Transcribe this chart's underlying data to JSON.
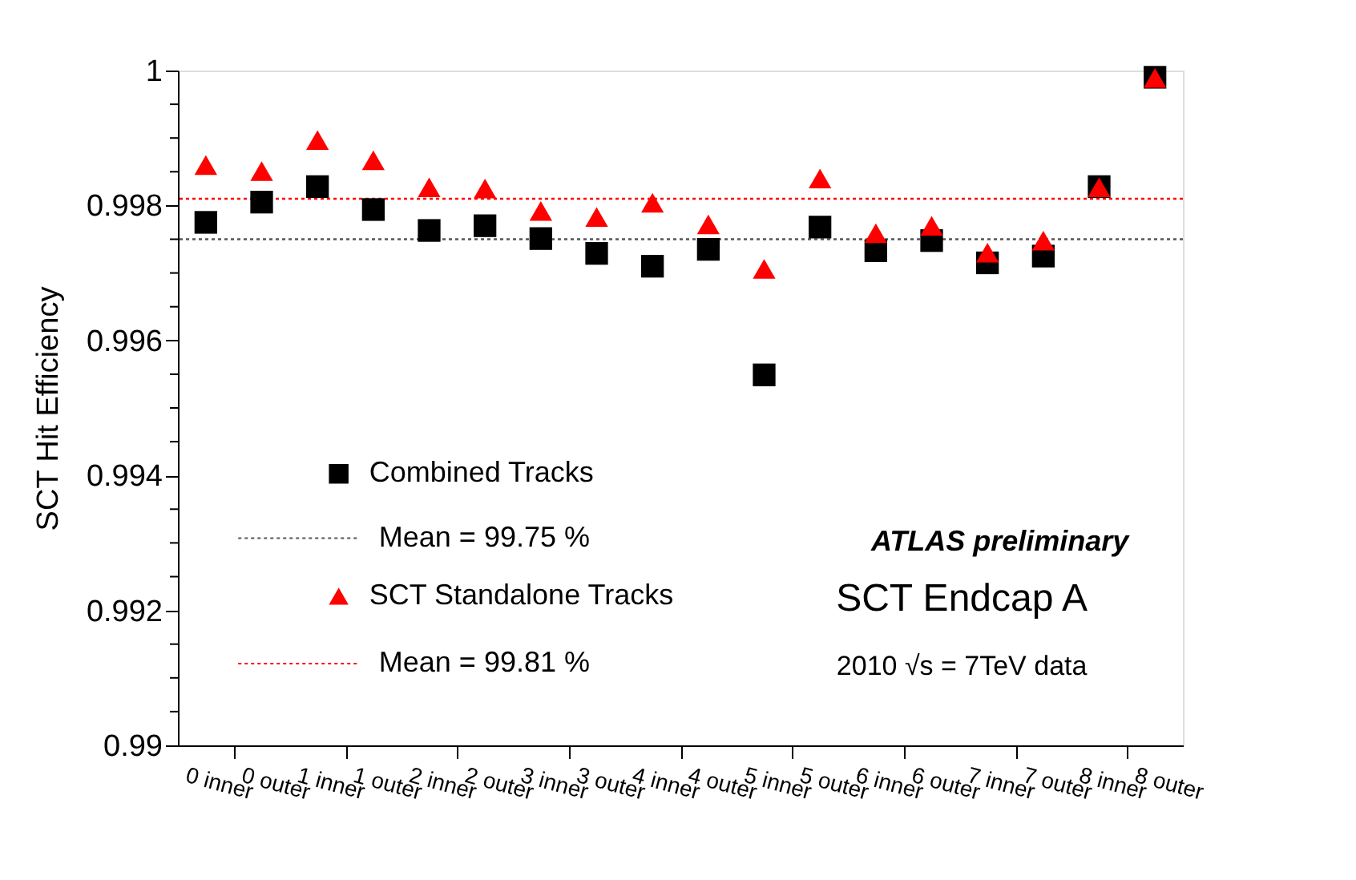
{
  "chart_data": {
    "type": "scatter",
    "ylabel": "SCT Hit Efficiency",
    "categories": [
      "0 inner",
      "0 outer",
      "1 inner",
      "1 outer",
      "2 inner",
      "2 outer",
      "3 inner",
      "3 outer",
      "4 inner",
      "4 outer",
      "5 inner",
      "5 outer",
      "6 inner",
      "6 outer",
      "7 inner",
      "7 outer",
      "8 inner",
      "8 outer"
    ],
    "series": [
      {
        "name": "Combined Tracks",
        "color": "#000000",
        "marker": "square",
        "values": [
          0.99775,
          0.99805,
          0.99828,
          0.99794,
          0.99763,
          0.9977,
          0.99751,
          0.99729,
          0.9971,
          0.99735,
          0.99549,
          0.99768,
          0.99733,
          0.99748,
          0.99715,
          0.99725,
          0.99828,
          0.9999
        ]
      },
      {
        "name": "SCT Standalone Tracks",
        "color": "#ff0000",
        "marker": "triangle",
        "values": [
          0.9986,
          0.99851,
          0.99897,
          0.99867,
          0.99827,
          0.99825,
          0.99792,
          0.99783,
          0.99804,
          0.99772,
          0.99706,
          0.9984,
          0.99759,
          0.9977,
          0.9973,
          0.99748,
          0.99827,
          0.99989
        ]
      }
    ],
    "ref_lines": [
      {
        "axis": "y",
        "value": 0.9975,
        "label": "Mean = 99.75 %",
        "color": "#555555",
        "line_style": "dotted"
      },
      {
        "axis": "y",
        "value": 0.9981,
        "label": "Mean = 99.81 %",
        "color": "#ff0000",
        "line_style": "dotted"
      }
    ],
    "annotations": [
      "ATLAS preliminary",
      "SCT Endcap A",
      "2010 √s = 7TeV data"
    ],
    "ylim": [
      0.99,
      1.0
    ],
    "yticks": [
      0.99,
      {
        "value": 0.9905,
        "label": null
      },
      {
        "value": 0.991,
        "label": null
      },
      {
        "value": 0.9915,
        "label": null
      },
      0.992,
      {
        "value": 0.9925,
        "label": null
      },
      {
        "value": 0.993,
        "label": null
      },
      {
        "value": 0.9935,
        "label": null
      },
      0.994,
      {
        "value": 0.9945,
        "label": null
      },
      {
        "value": 0.995,
        "label": null
      },
      {
        "value": 0.9955,
        "label": null
      },
      0.996,
      {
        "value": 0.9965,
        "label": null
      },
      {
        "value": 0.997,
        "label": null
      },
      {
        "value": 0.9975,
        "label": null
      },
      0.998,
      {
        "value": 0.9985,
        "label": null
      },
      {
        "value": 0.999,
        "label": null
      },
      {
        "value": 0.9995,
        "label": null
      },
      1
    ],
    "grid": false,
    "legend": "bottom left"
  }
}
